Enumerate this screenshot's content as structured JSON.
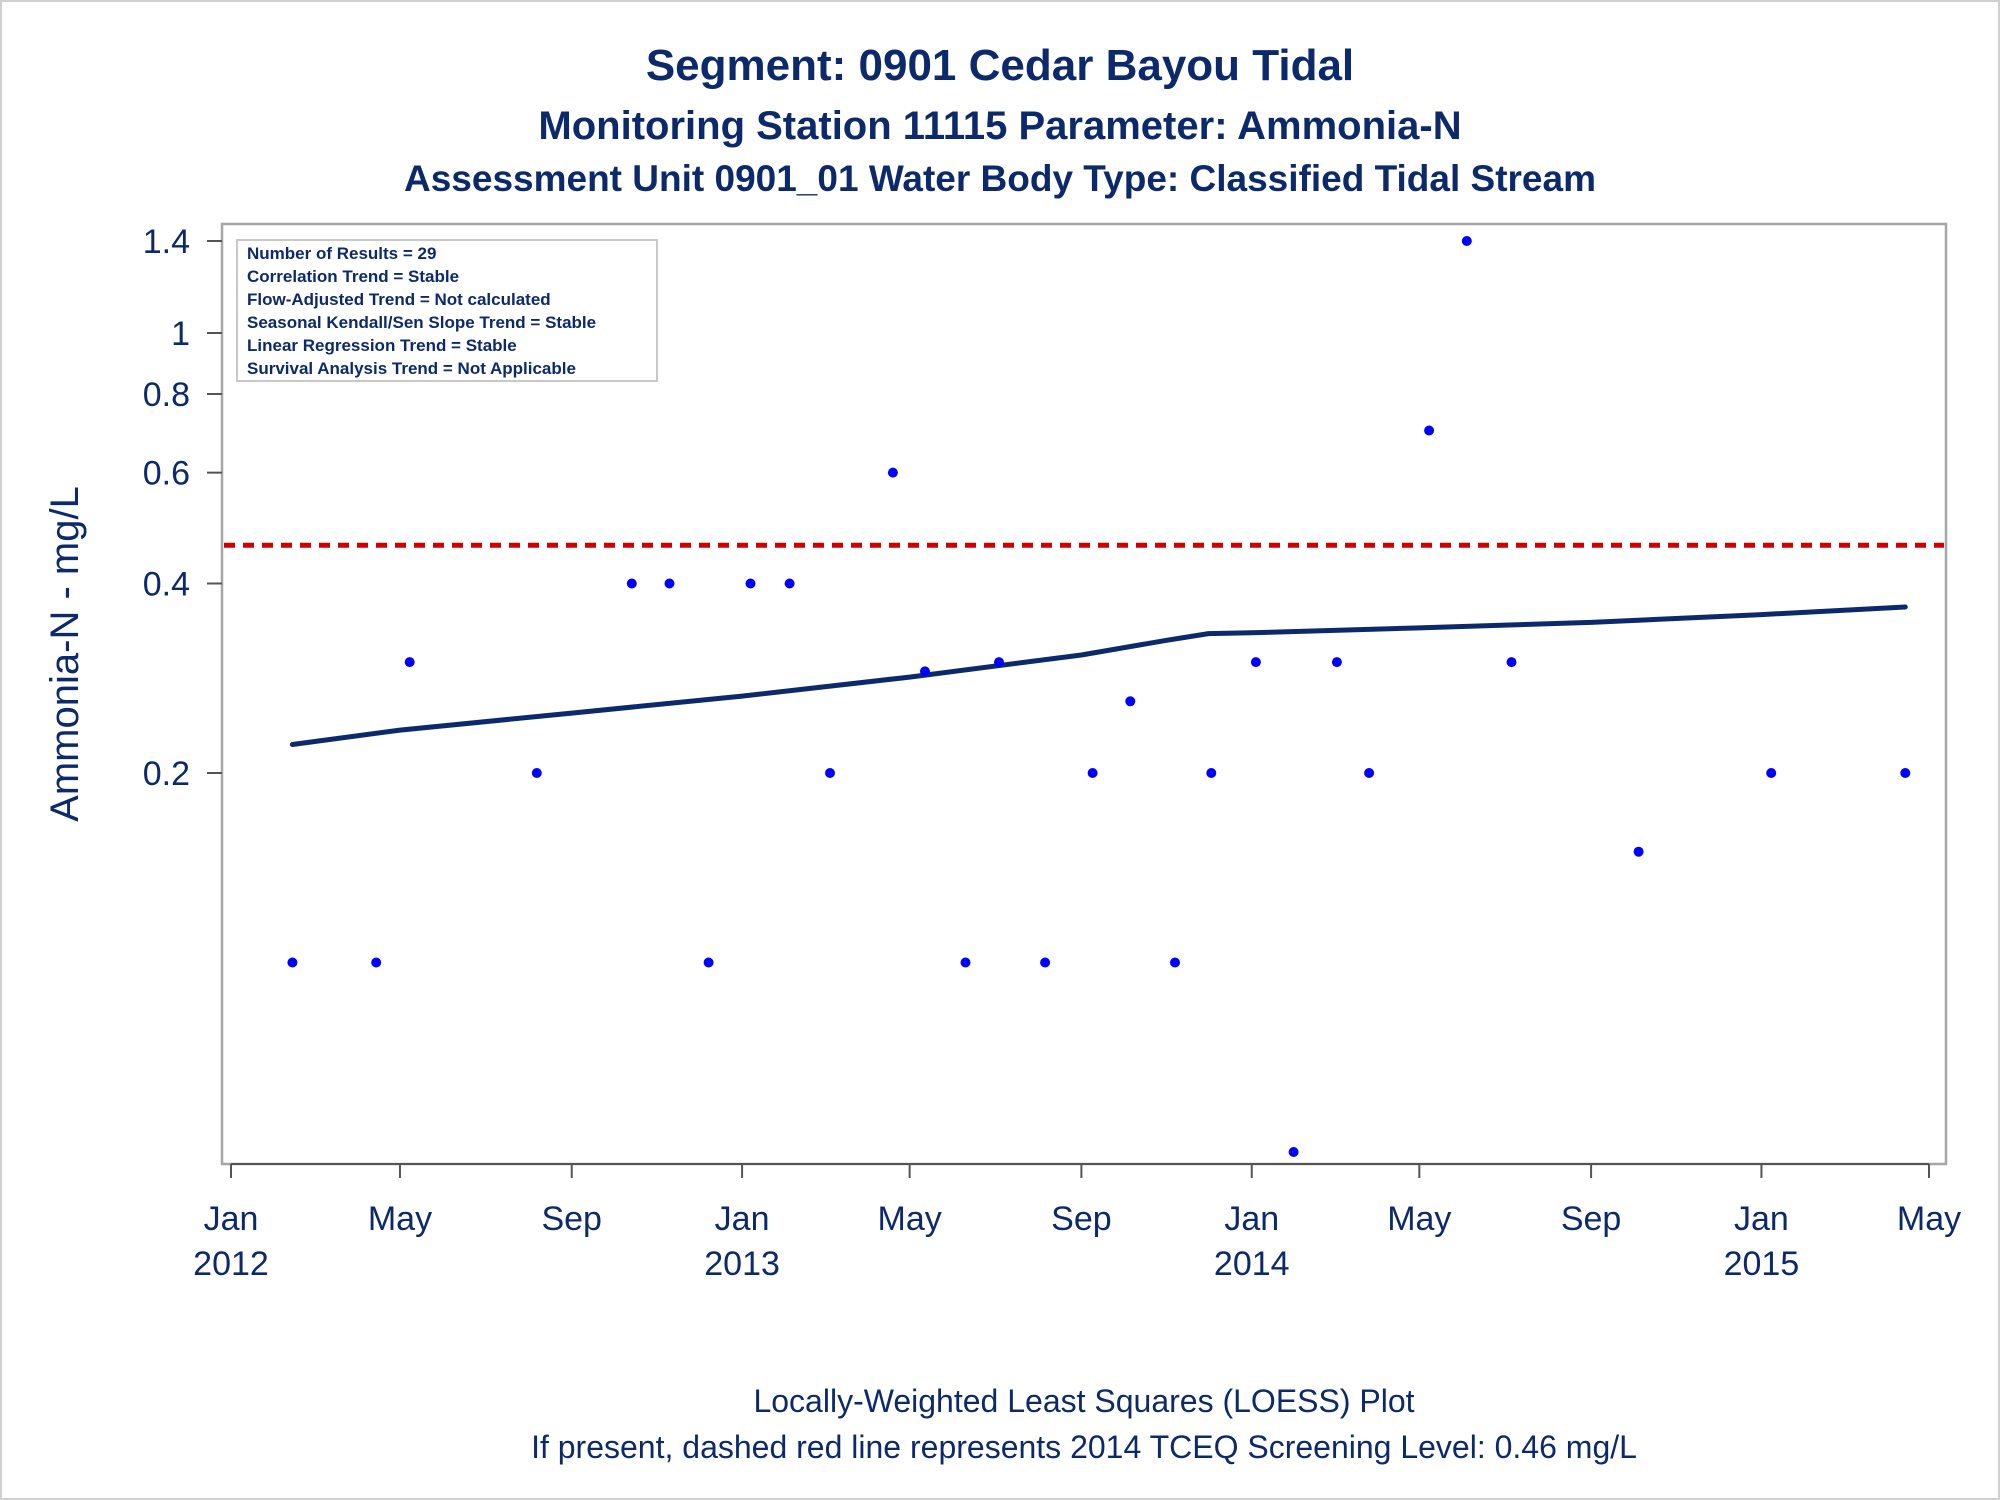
{
  "chart_data": {
    "type": "scatter",
    "title": "Segment: 0901  Cedar Bayou Tidal",
    "subtitle": "Monitoring Station 11115 Parameter: Ammonia-N",
    "subtitle2": "Assessment Unit 0901_01   Water Body Type: Classified Tidal Stream",
    "ylabel": "Ammonia-N - mg/L",
    "xlabel": "",
    "y_scale": "log",
    "ylim": [
      0.05,
      1.45
    ],
    "xlim": [
      "2012-01-01",
      "2015-05-01"
    ],
    "y_ticks": [
      {
        "value": 0.2,
        "label": "0.2"
      },
      {
        "value": 0.4,
        "label": "0.4"
      },
      {
        "value": 0.6,
        "label": "0.6"
      },
      {
        "value": 0.8,
        "label": "0.8"
      },
      {
        "value": 1.0,
        "label": "1"
      },
      {
        "value": 1.4,
        "label": "1.4"
      }
    ],
    "x_ticks": [
      {
        "date": "2012-01-01",
        "label": "Jan",
        "year": "2012"
      },
      {
        "date": "2012-05-01",
        "label": "May",
        "year": ""
      },
      {
        "date": "2012-09-01",
        "label": "Sep",
        "year": ""
      },
      {
        "date": "2013-01-01",
        "label": "Jan",
        "year": "2013"
      },
      {
        "date": "2013-05-01",
        "label": "May",
        "year": ""
      },
      {
        "date": "2013-09-01",
        "label": "Sep",
        "year": ""
      },
      {
        "date": "2014-01-01",
        "label": "Jan",
        "year": "2014"
      },
      {
        "date": "2014-05-01",
        "label": "May",
        "year": ""
      },
      {
        "date": "2014-09-01",
        "label": "Sep",
        "year": ""
      },
      {
        "date": "2015-01-01",
        "label": "Jan",
        "year": "2015"
      },
      {
        "date": "2015-05-01",
        "label": "May",
        "year": ""
      }
    ],
    "series": [
      {
        "kind": "points",
        "color": "#0000ff",
        "points": [
          {
            "x": "2012-02-14",
            "y": 0.1
          },
          {
            "x": "2012-04-14",
            "y": 0.1
          },
          {
            "x": "2012-05-08",
            "y": 0.3
          },
          {
            "x": "2012-08-07",
            "y": 0.2
          },
          {
            "x": "2012-10-14",
            "y": 0.4
          },
          {
            "x": "2012-11-10",
            "y": 0.4
          },
          {
            "x": "2012-12-08",
            "y": 0.1
          },
          {
            "x": "2013-01-07",
            "y": 0.4
          },
          {
            "x": "2013-02-04",
            "y": 0.4
          },
          {
            "x": "2013-03-05",
            "y": 0.2
          },
          {
            "x": "2013-04-19",
            "y": 0.6
          },
          {
            "x": "2013-05-12",
            "y": 0.29
          },
          {
            "x": "2013-06-10",
            "y": 0.1
          },
          {
            "x": "2013-07-04",
            "y": 0.3
          },
          {
            "x": "2013-08-06",
            "y": 0.1
          },
          {
            "x": "2013-09-09",
            "y": 0.2
          },
          {
            "x": "2013-10-06",
            "y": 0.26
          },
          {
            "x": "2013-11-07",
            "y": 0.1
          },
          {
            "x": "2013-12-03",
            "y": 0.2
          },
          {
            "x": "2014-01-04",
            "y": 0.3
          },
          {
            "x": "2014-01-31",
            "y": 0.05
          },
          {
            "x": "2014-03-03",
            "y": 0.3
          },
          {
            "x": "2014-03-26",
            "y": 0.2
          },
          {
            "x": "2014-05-08",
            "y": 0.7
          },
          {
            "x": "2014-06-04",
            "y": 1.4
          },
          {
            "x": "2014-07-06",
            "y": 0.3
          },
          {
            "x": "2014-10-05",
            "y": 0.15
          },
          {
            "x": "2015-01-08",
            "y": 0.2
          },
          {
            "x": "2015-04-14",
            "y": 0.2
          }
        ]
      },
      {
        "kind": "loess",
        "color": "#0c2a6b",
        "points": [
          {
            "x": "2012-02-14",
            "y": 0.222
          },
          {
            "x": "2012-05-01",
            "y": 0.234
          },
          {
            "x": "2012-09-01",
            "y": 0.249
          },
          {
            "x": "2013-01-01",
            "y": 0.265
          },
          {
            "x": "2013-05-01",
            "y": 0.284
          },
          {
            "x": "2013-09-01",
            "y": 0.308
          },
          {
            "x": "2013-11-01",
            "y": 0.325
          },
          {
            "x": "2013-12-01",
            "y": 0.333
          },
          {
            "x": "2014-01-01",
            "y": 0.334
          },
          {
            "x": "2014-05-01",
            "y": 0.34
          },
          {
            "x": "2014-09-01",
            "y": 0.347
          },
          {
            "x": "2015-01-01",
            "y": 0.357
          },
          {
            "x": "2015-04-14",
            "y": 0.367
          }
        ]
      }
    ],
    "screening_level": {
      "value": 0.46,
      "color": "#d00000"
    },
    "grid": false,
    "legend_placement": "top-left"
  },
  "stats_box": [
    "Number of Results = 29",
    "Correlation Trend = Stable",
    "Flow-Adjusted Trend = Not calculated",
    "Seasonal Kendall/Sen Slope Trend = Stable",
    "Linear Regression Trend = Stable",
    "Survival Analysis Trend = Not Applicable"
  ],
  "footnote": {
    "line1": "Locally-Weighted Least Squares (LOESS) Plot",
    "line2": "If present, dashed red line represents 2014 TCEQ Screening Level: 0.46 mg/L"
  }
}
